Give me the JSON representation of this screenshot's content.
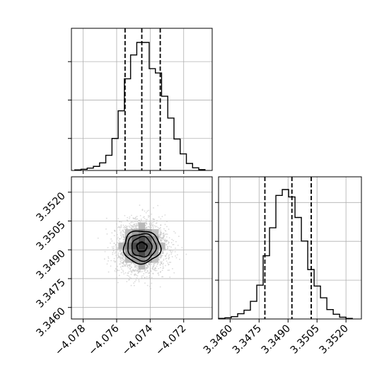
{
  "chart_data": [
    {
      "type": "histogram",
      "panel": "top-left",
      "parameter_index": 0,
      "xlim": [
        -4.0787,
        -4.0703
      ],
      "grid": true,
      "bin_edges": [
        -4.0785,
        -4.07813,
        -4.07776,
        -4.07739,
        -4.07702,
        -4.07665,
        -4.07628,
        -4.07591,
        -4.07554,
        -4.07517,
        -4.0748,
        -4.07443,
        -4.07406,
        -4.07369,
        -4.07332,
        -4.07295,
        -4.07258,
        -4.07221,
        -4.07184,
        -4.07147,
        -4.0711,
        -4.07073
      ],
      "counts": [
        2,
        4,
        8,
        14,
        26,
        52,
        110,
        205,
        315,
        397,
        440,
        440,
        350,
        335,
        255,
        180,
        108,
        57,
        24,
        9,
        3
      ],
      "quantile_lines": [
        -4.0755,
        -4.0745,
        -4.0734
      ],
      "quantile_line_style": "dashed"
    },
    {
      "type": "histogram",
      "panel": "bottom-right",
      "parameter_index": 1,
      "xlim": [
        3.3454,
        3.3528
      ],
      "xticks": [
        "3.3460",
        "3.3475",
        "3.3490",
        "3.3505",
        "3.3520"
      ],
      "grid": true,
      "bin_edges": [
        3.3454,
        3.34573,
        3.34606,
        3.34639,
        3.34672,
        3.34705,
        3.34738,
        3.34771,
        3.34804,
        3.34837,
        3.3487,
        3.34903,
        3.34936,
        3.34969,
        3.35002,
        3.35035,
        3.35068,
        3.35101,
        3.35134,
        3.35167,
        3.352,
        3.35233
      ],
      "counts": [
        2,
        4,
        8,
        18,
        30,
        60,
        115,
        215,
        310,
        420,
        440,
        415,
        345,
        265,
        168,
        112,
        72,
        32,
        16,
        6,
        2
      ],
      "quantile_lines": [
        3.3478,
        3.3492,
        3.3502
      ],
      "quantile_line_style": "dashed"
    },
    {
      "type": "2d-histogram-contour",
      "panel": "bottom-left",
      "xlim": [
        -4.0787,
        -4.0703
      ],
      "ylim": [
        3.3454,
        3.3528
      ],
      "xticks": [
        "−4.078",
        "−4.076",
        "−4.074",
        "−4.072"
      ],
      "yticks": [
        "3.3460",
        "3.3475",
        "3.3490",
        "3.3505",
        "3.3520"
      ],
      "grid": true,
      "center": [
        -4.0745,
        3.34915
      ],
      "density_cells": [
        {
          "x": -4.0745,
          "y": 3.3492,
          "level": 1.0
        },
        {
          "x": -4.0749,
          "y": 3.3492,
          "level": 0.85
        },
        {
          "x": -4.0741,
          "y": 3.3492,
          "level": 0.8
        },
        {
          "x": -4.0745,
          "y": 3.34955,
          "level": 0.82
        },
        {
          "x": -4.0745,
          "y": 3.34885,
          "level": 0.85
        },
        {
          "x": -4.0749,
          "y": 3.34955,
          "level": 0.7
        },
        {
          "x": -4.0741,
          "y": 3.34955,
          "level": 0.68
        },
        {
          "x": -4.0749,
          "y": 3.34885,
          "level": 0.7
        },
        {
          "x": -4.0741,
          "y": 3.34885,
          "level": 0.66
        },
        {
          "x": -4.0753,
          "y": 3.3492,
          "level": 0.55
        },
        {
          "x": -4.0737,
          "y": 3.3492,
          "level": 0.5
        },
        {
          "x": -4.0745,
          "y": 3.3499,
          "level": 0.52
        },
        {
          "x": -4.0745,
          "y": 3.3485,
          "level": 0.5
        },
        {
          "x": -4.0753,
          "y": 3.34955,
          "level": 0.42
        },
        {
          "x": -4.0737,
          "y": 3.34955,
          "level": 0.4
        },
        {
          "x": -4.0753,
          "y": 3.34885,
          "level": 0.42
        },
        {
          "x": -4.0737,
          "y": 3.34885,
          "level": 0.4
        },
        {
          "x": -4.0749,
          "y": 3.3499,
          "level": 0.4
        },
        {
          "x": -4.0741,
          "y": 3.3499,
          "level": 0.38
        },
        {
          "x": -4.0749,
          "y": 3.3485,
          "level": 0.42
        },
        {
          "x": -4.0741,
          "y": 3.3485,
          "level": 0.4
        },
        {
          "x": -4.0757,
          "y": 3.3492,
          "level": 0.28
        },
        {
          "x": -4.0733,
          "y": 3.3492,
          "level": 0.26
        },
        {
          "x": -4.0745,
          "y": 3.35025,
          "level": 0.26
        },
        {
          "x": -4.0745,
          "y": 3.34815,
          "level": 0.28
        },
        {
          "x": -4.0753,
          "y": 3.3499,
          "level": 0.24
        },
        {
          "x": -4.0737,
          "y": 3.3499,
          "level": 0.22
        },
        {
          "x": -4.0753,
          "y": 3.3485,
          "level": 0.25
        },
        {
          "x": -4.0737,
          "y": 3.3485,
          "level": 0.22
        }
      ],
      "contour_levels": [
        {
          "rx": 0.0011,
          "ry": 0.00085
        },
        {
          "rx": 0.00085,
          "ry": 0.0007
        },
        {
          "rx": 0.0006,
          "ry": 0.00052
        },
        {
          "rx": 0.0003,
          "ry": 0.00024
        }
      ],
      "scatter_points": 2500,
      "colors": {
        "scatter": "#bdbdbd",
        "contour": "#000000",
        "grid": "#b0b0b0"
      }
    }
  ]
}
